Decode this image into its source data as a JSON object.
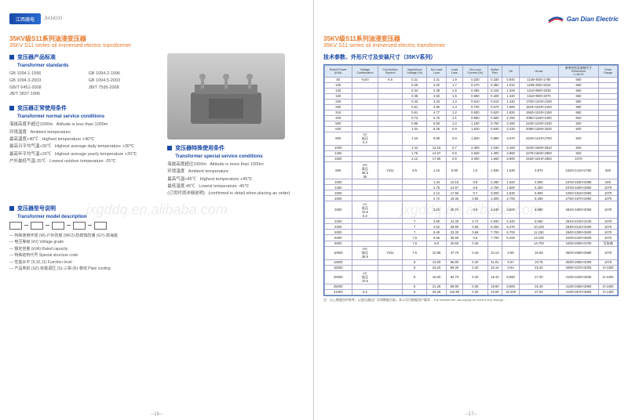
{
  "brand": {
    "left_badge": "江西赣电",
    "left_sub": "JIANGXI",
    "right_name": "Gan Dian Electric"
  },
  "titles": {
    "cn": "35KV级S11系列油浸变压器",
    "en": "35KV S11 series oil immersed electric transformer"
  },
  "standards": {
    "hd_cn": "变压器产品标准",
    "hd_en": "Transformer standards",
    "col1": [
      "GB 1094.1-1996",
      "GB 1094.3-2003",
      "GB/T 6451-2008",
      "JB/T 3837-1996"
    ],
    "col2": [
      "GB 1094.2-1996",
      "GB 1094.5-2003",
      "JB/T 7595-2008"
    ]
  },
  "service": {
    "hd_cn": "变压器正常使用条件",
    "hd_en": "Transformer normal service conditions",
    "rows": [
      [
        "海拔高度不超过1000m",
        "Altitude is less than 1000m"
      ],
      [
        "环境温度",
        "Ambient temperature"
      ],
      [
        "最高温度+40℃",
        "Highest temperature +40℃"
      ],
      [
        "最高日平均气温+30℃",
        "Highest average daily temperature +30℃"
      ],
      [
        "最高年平均气温+20℃",
        "Highest average yearly temperature +20℃"
      ],
      [
        "户外最低气温-25℃",
        "Lowest outdoor temperature -25℃"
      ]
    ]
  },
  "special": {
    "hd_cn": "变压器特殊使用条件",
    "hd_en": "Transformer special service conditions",
    "rows": [
      [
        "海拔高度超过1000m",
        "Altitude is more than 1000m"
      ],
      [
        "环境温度",
        "Ambient temperature"
      ],
      [
        "最高气温+45℃",
        "Highest temperature +45℃"
      ],
      [
        "最低温度-45℃",
        "Lowest temperature -45℃"
      ],
      [
        "(订货时须详细说明)",
        "(confirmed in detail when placing an order)"
      ]
    ]
  },
  "model": {
    "hd_cn": "变压器型号说明",
    "hd_en": "Transformer model description",
    "notes": [
      "特殊使用环境 (W)-户外防腐 (WF2)-防腐蚀防潮 (GY)-高海拔",
      "电压等级 (kV) Voltage grade",
      "额定容量 (kVA) Rated capacity",
      "特殊结构代号 Special structure code",
      "性能水平 (9,10,11) Function level",
      "产品类别 (SZ)-有载调压 (S)-三相 (R)-卷线 Plain cooling"
    ]
  },
  "tech": {
    "hd_cn": "技术参数、外形尺寸及安装尺寸（35KV系列）",
    "hd_en": ""
  },
  "table": {
    "headers": [
      "Rated Power\n(kVA)",
      "Voltage\nCombination",
      "Connection\nSymbol",
      "Impedance\nVoltage (%)",
      "No-Load\nLoss",
      "Load\nLoss",
      "No-Load\nCurrent (%)",
      "Active\nPart",
      "Oil",
      "Gross",
      "参考外形及安装尺寸\nDimension\nL×W×H",
      "Track\nGauge"
    ],
    "sub": [
      "",
      "HV\n高压\n38.5\n35",
      "",
      "",
      "",
      "",
      "",
      "",
      "",
      "",
      "",
      ""
    ],
    "rows": [
      [
        "50",
        "Yyn0",
        "6.5",
        "0.21",
        "2.21",
        "1.9",
        "0.230",
        "0.330",
        "0.840",
        "1145×935×1790",
        "660"
      ],
      [
        "100",
        "",
        "",
        "0.29",
        "2.02",
        "1.7",
        "0.270",
        "0.350",
        "1.010",
        "1185×935×1810",
        "660"
      ],
      [
        "125",
        "",
        "",
        "0.34",
        "2.39",
        "1.6",
        "0.485",
        "0.415",
        "1.205",
        "1210×980×2035",
        "660"
      ],
      [
        "160",
        "",
        "",
        "0.36",
        "2.83",
        "1.5",
        "0.590",
        "0.400",
        "1.340",
        "1310×980×2070",
        "660"
      ],
      [
        "200",
        "",
        "",
        "0.43",
        "3.33",
        "1.4",
        "0.610",
        "0.510",
        "1.440",
        "1700×1200×2100",
        "660"
      ],
      [
        "250",
        "",
        "",
        "0.51",
        "3.96",
        "1.3",
        "0.730",
        "0.570",
        "1.660",
        "1815×1020×2150",
        "660"
      ],
      [
        "315",
        "",
        "",
        "0.61",
        "4.77",
        "1.2",
        "0.830",
        "0.620",
        "1.820",
        "1960×1020×2190",
        "660"
      ],
      [
        "400",
        "",
        "",
        "0.73",
        "5.76",
        "1.1",
        "0.950",
        "0.680",
        "2.150",
        "2080×1100×2400",
        "820"
      ],
      [
        "500",
        "",
        "",
        "0.86",
        "6.93",
        "1.0",
        "1.190",
        "0.760",
        "2.490",
        "2100×1340×2430",
        "820"
      ],
      [
        "630",
        "",
        "",
        "1.04",
        "8.29",
        "0.9",
        "1.620",
        "0.830",
        "3.220",
        "2080×1360×2530",
        "820"
      ],
      [
        "800",
        "LV\n低压\n0.4",
        "",
        "1.23",
        "9.90",
        "0.8",
        "1.820",
        "0.980",
        "3.670",
        "2320×1410×2750",
        "820"
      ],
      [
        "1000",
        "",
        "",
        "1.44",
        "12.15",
        "0.7",
        "2.300",
        "1.030",
        "4.160",
        "2320×1580×2810",
        "820"
      ],
      [
        "1250",
        "",
        "",
        "1.76",
        "14.67",
        "0.6",
        "2.840",
        "1.400",
        "4.960",
        "2375×1600×2950",
        "820"
      ],
      [
        "1600",
        "",
        "",
        "2.12",
        "17.55",
        "0.6",
        "3.000",
        "1.560",
        "5.900",
        "2450×1910×3350",
        "1070"
      ],
      [
        "800",
        "HV\n高压\n38.5\n35",
        "Yd11",
        "6.5",
        "1.23",
        "9.90",
        "1.0",
        "1.830",
        "1.530",
        "3.870",
        "2320×1410×2750",
        "820"
      ],
      [
        "1000",
        "",
        "",
        "",
        "1.44",
        "12.15",
        "0.9",
        "2.280",
        "1.620",
        "4.600",
        "2375×1830×2895",
        "820"
      ],
      [
        "1250",
        "",
        "",
        "",
        "1.76",
        "14.67",
        "0.8",
        "2.750",
        "1.800",
        "5.300",
        "2375×1600×2950",
        "1070"
      ],
      [
        "1600",
        "",
        "",
        "",
        "2.12",
        "17.55",
        "0.7",
        "3.000",
        "2.630",
        "5.900",
        "2450×1910×2950",
        "1070"
      ],
      [
        "2000",
        "",
        "",
        "",
        "2.72",
        "19.35",
        "0.85",
        "3.300",
        "2.700",
        "6.260",
        "2750×1970×2990",
        "1070"
      ],
      [
        "2500",
        "LV\n低压\n10.5\n6.3",
        "",
        "",
        "3.20",
        "20.70",
        "0.8",
        "4.240",
        "3.500",
        "6.990",
        "2810×1800×3060",
        "1070"
      ],
      [
        "3150",
        "",
        "",
        "7",
        "3.80",
        "24.30",
        "0.72",
        "4.830",
        "4.440",
        "8.090",
        "2810×2100×3100",
        "1070"
      ],
      [
        "4000",
        "",
        "",
        "7",
        "4.52",
        "28.80",
        "0.68",
        "6.250",
        "5.270",
        "10.100",
        "2930×2120×3400",
        "1070"
      ],
      [
        "5000",
        "",
        "",
        "7",
        "5.40",
        "33.30",
        "0.68",
        "7.700",
        "5.700",
        "11.150",
        "2840×2300×3500",
        "1070"
      ],
      [
        "6300",
        "",
        "",
        "7.5",
        "6.56",
        "36.90",
        "0.6",
        "7.700",
        "5.200",
        "13.100",
        "3100×2420×3500",
        "1070"
      ],
      [
        "8000",
        "",
        "",
        "7.5",
        "9.0",
        "40.50",
        "0.45",
        "",
        "",
        "14.700",
        "3400×2560×3700",
        "可协商"
      ],
      [
        "10000",
        "HV\n高压\n38.5",
        "Yd11",
        "7.5",
        "10.88",
        "47.70",
        "0.45",
        "10.13",
        "5.85",
        "16.65",
        "3500×2680×3880",
        "1070"
      ],
      [
        "12500",
        "",
        "",
        "8",
        "13.00",
        "56.80",
        "0.40",
        "11.91",
        "5.97",
        "19.75",
        "3530×2850×4000",
        "1070"
      ],
      [
        "16000",
        "",
        "",
        "8",
        "15.20",
        "69.30",
        "0.40",
        "15.10",
        "6.94",
        "23.40",
        "4080×3370×3000",
        "2×1300"
      ],
      [
        "20000",
        "LV\n低压\n10.5",
        "",
        "8",
        "18.00",
        "83.70",
        "0.40",
        "15.10",
        "8.960",
        "27.20",
        "4100×3400×3930",
        "2×1300"
      ],
      [
        "25000",
        "",
        "",
        "8",
        "21.28",
        "99.90",
        "0.35",
        "19.60",
        "9.600",
        "32.40",
        "4130×3460×3950",
        "2×1300"
      ],
      [
        "31500",
        "6.3",
        "",
        "8",
        "25.28",
        "118.80",
        "0.35",
        "23.60",
        "10.200",
        "37.50",
        "4180×3570×3980",
        "2×1450"
      ]
    ],
    "footnote": "注：以上数据仅供参考，以变压器出厂实测数据为准。本公司可根据用户要求…The transformer can supply as need if any change…"
  },
  "pages": {
    "left": "--16--",
    "right": "--17--"
  },
  "watermark": "jxgddq.en.alibaba.com",
  "colors": {
    "accent": "#1a4aa8",
    "orange": "#e7792a",
    "th_bg": "#dce8f5"
  }
}
